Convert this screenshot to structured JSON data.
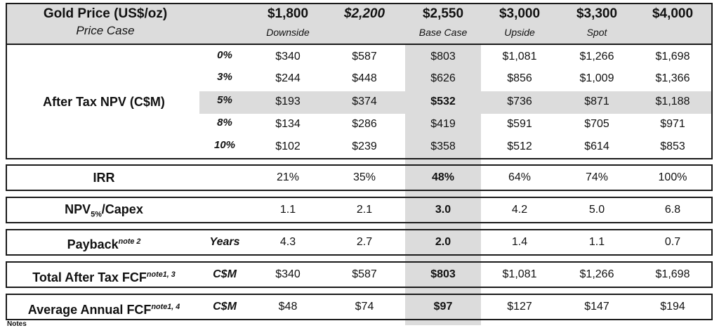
{
  "header": {
    "title": "Gold Price (US$/oz)",
    "subtitle": "Price Case",
    "columns": [
      {
        "price": "$1,800",
        "case": "Downside",
        "italic": false
      },
      {
        "price": "$2,200",
        "case": "",
        "italic": true
      },
      {
        "price": "$2,550",
        "case": "Base Case",
        "italic": false
      },
      {
        "price": "$3,000",
        "case": "Upside",
        "italic": false
      },
      {
        "price": "$3,300",
        "case": "Spot",
        "italic": false
      },
      {
        "price": "$4,000",
        "case": "",
        "italic": false
      }
    ]
  },
  "npv": {
    "label": "After Tax NPV (C$M)",
    "rows": [
      {
        "rate": "0%",
        "values": [
          "$340",
          "$587",
          "$803",
          "$1,081",
          "$1,266",
          "$1,698"
        ]
      },
      {
        "rate": "3%",
        "values": [
          "$244",
          "$448",
          "$626",
          "$856",
          "$1,009",
          "$1,366"
        ]
      },
      {
        "rate": "5%",
        "values": [
          "$193",
          "$374",
          "$532",
          "$736",
          "$871",
          "$1,188"
        ]
      },
      {
        "rate": "8%",
        "values": [
          "$134",
          "$286",
          "$419",
          "$591",
          "$705",
          "$971"
        ]
      },
      {
        "rate": "10%",
        "values": [
          "$102",
          "$239",
          "$358",
          "$512",
          "$614",
          "$853"
        ]
      }
    ]
  },
  "irr": {
    "label": "IRR",
    "values": [
      "21%",
      "35%",
      "48%",
      "64%",
      "74%",
      "100%"
    ]
  },
  "npv_capex": {
    "label_main": "NPV",
    "label_sub": "5%",
    "label_rest": "/Capex",
    "values": [
      "1.1",
      "2.1",
      "3.0",
      "4.2",
      "5.0",
      "6.8"
    ]
  },
  "payback": {
    "label_main": "Payback",
    "note": "note 2",
    "unit": "Years",
    "values": [
      "4.3",
      "2.7",
      "2.0",
      "1.4",
      "1.1",
      "0.7"
    ]
  },
  "total_fcf": {
    "label_main": "Total After Tax FCF",
    "note": "note1, 3",
    "unit": "C$M",
    "values": [
      "$340",
      "$587",
      "$803",
      "$1,081",
      "$1,266",
      "$1,698"
    ]
  },
  "avg_fcf": {
    "label_main": "Average Annual FCF",
    "note": "note1, 4",
    "unit": "C$M",
    "values": [
      "$48",
      "$74",
      "$97",
      "$127",
      "$147",
      "$194"
    ]
  },
  "footnote": "Notes"
}
